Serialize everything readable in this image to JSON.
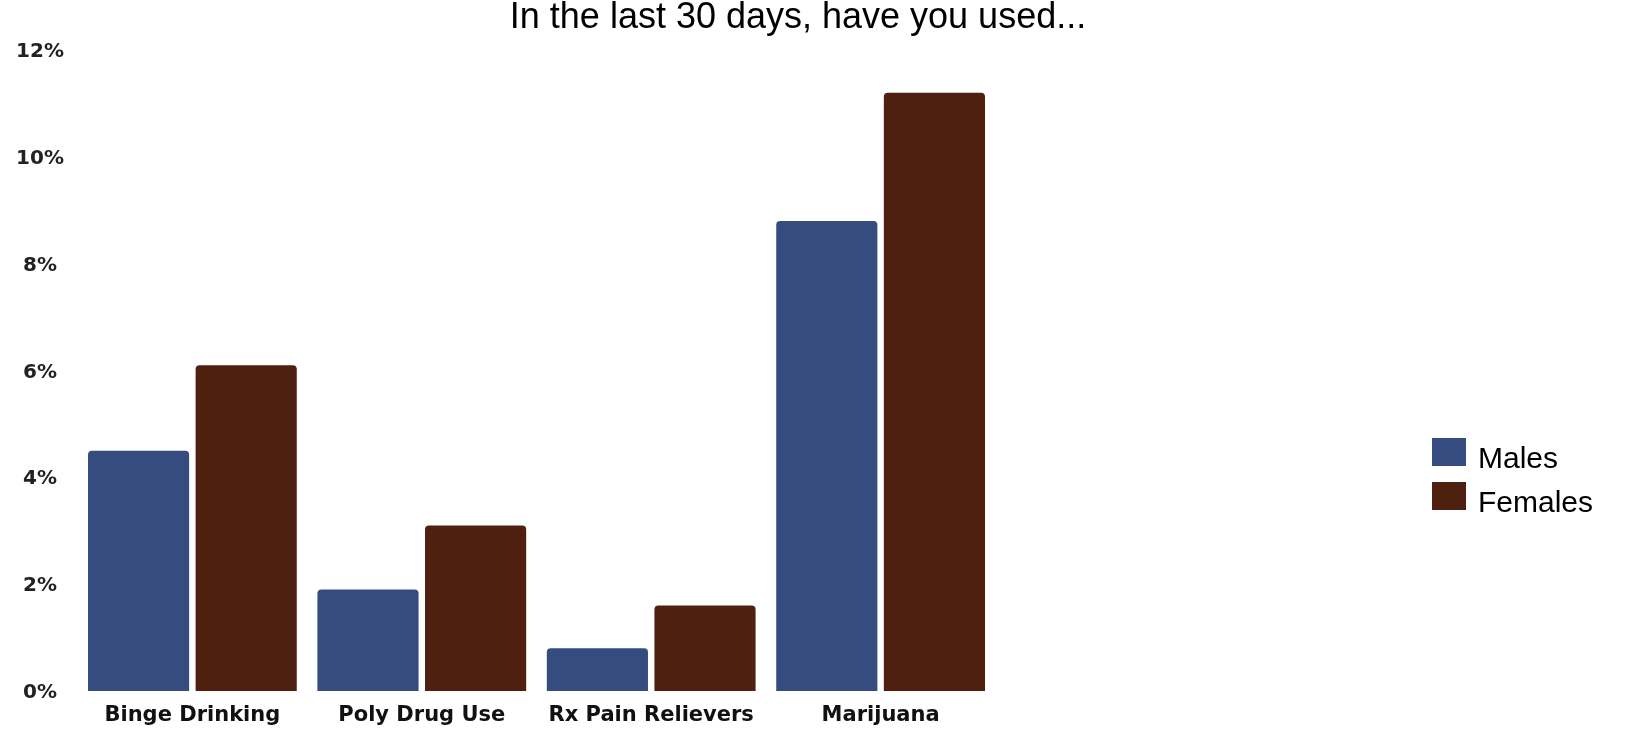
{
  "chart_data": {
    "type": "bar",
    "title": "In the last 30 days, have you used...",
    "categories": [
      "Binge Drinking",
      "Poly Drug Use",
      "Rx Pain Relievers",
      "Marijuana"
    ],
    "series": [
      {
        "name": "Males",
        "color": "#364c80",
        "values": [
          4.5,
          1.9,
          0.8,
          8.8
        ]
      },
      {
        "name": "Females",
        "color": "#4f1f10",
        "values": [
          6.1,
          3.1,
          1.6,
          11.2
        ]
      }
    ],
    "ylim": [
      0,
      12
    ],
    "yticks": [
      {
        "value": 0,
        "label": "0%"
      },
      {
        "value": 2,
        "label": "2%"
      },
      {
        "value": 4,
        "label": "4%"
      },
      {
        "value": 6,
        "label": "6%"
      },
      {
        "value": 8,
        "label": "8%"
      },
      {
        "value": 10,
        "label": "10%"
      },
      {
        "value": 12,
        "label": "12%"
      }
    ],
    "grid": false,
    "legend": "right"
  }
}
